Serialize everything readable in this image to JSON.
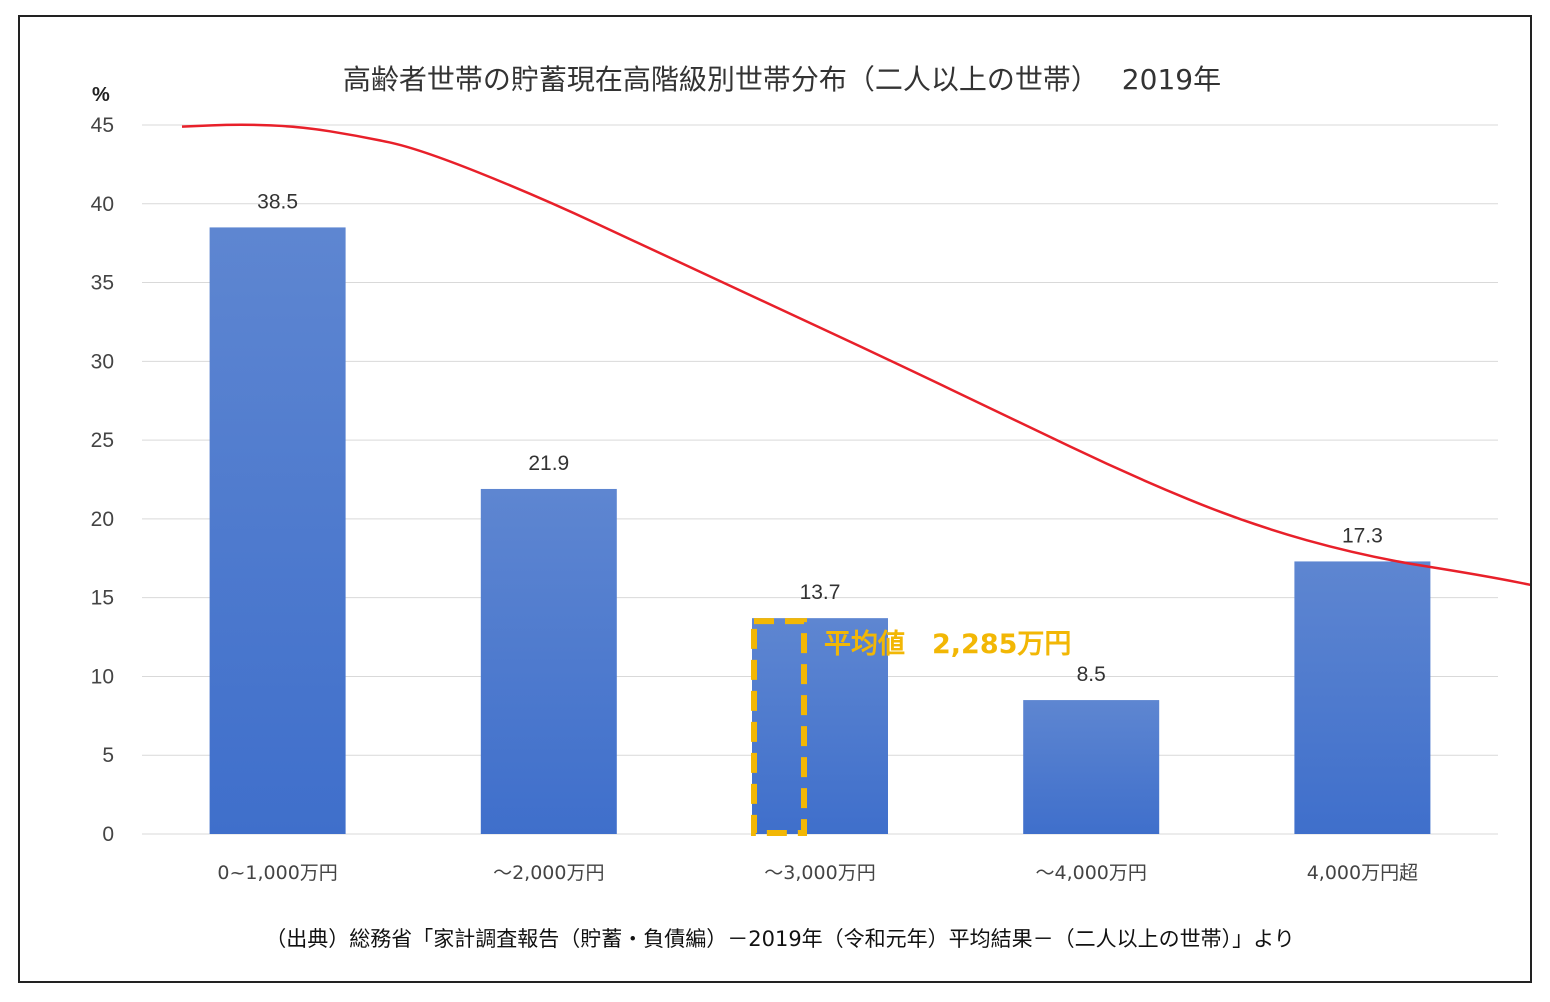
{
  "chart_data": {
    "type": "bar",
    "title": "高齢者世帯の貯蓄現在高階級別世帯分布（二人以上の世帯）　 2019年",
    "y_unit": "%",
    "ylim": [
      0,
      45
    ],
    "yticks": [
      "0",
      "5",
      "10",
      "15",
      "20",
      "25",
      "30",
      "35",
      "40",
      "45"
    ],
    "grid": true,
    "categories": [
      "0~1,000万円",
      "～2,000万円",
      "～3,000万円",
      "～4,000万円",
      "4,000万円超"
    ],
    "values": [
      38.5,
      21.9,
      13.7,
      8.5,
      17.3
    ],
    "value_labels": [
      "38.5",
      "21.9",
      "13.7",
      "8.5",
      "17.3"
    ],
    "bar_color": "#3F6FCB",
    "trend_line": {
      "color": "#E8202A",
      "points": [
        [
          0.0,
          44.9
        ],
        [
          0.25,
          45.05
        ],
        [
          0.5,
          44.9
        ],
        [
          0.75,
          44.3
        ],
        [
          1.0,
          43.5
        ],
        [
          1.5,
          40.5
        ],
        [
          2.0,
          37.0
        ],
        [
          2.5,
          33.5
        ],
        [
          3.0,
          30.0
        ],
        [
          3.5,
          26.4
        ],
        [
          4.0,
          22.8
        ],
        [
          4.5,
          19.7
        ],
        [
          5.0,
          17.6
        ],
        [
          5.5,
          16.4
        ],
        [
          5.8,
          15.5
        ]
      ]
    },
    "annotation": {
      "text": "平均値　2,285万円",
      "color": "#F2B705",
      "highlight_value": 13.7
    },
    "source": "（出典）総務省「家計調査報告（貯蓄・負債編）－2019年（令和元年）平均結果－（二人以上の世帯）」より"
  }
}
